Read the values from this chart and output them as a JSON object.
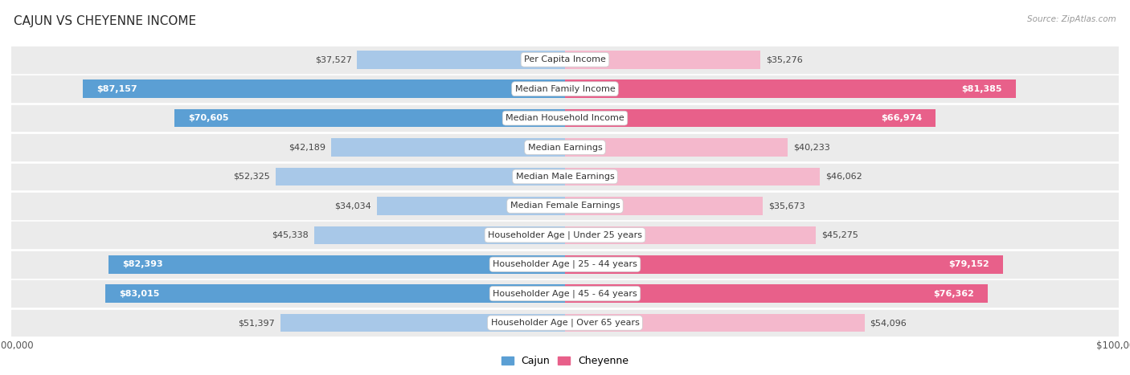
{
  "title": "CAJUN VS CHEYENNE INCOME",
  "source": "Source: ZipAtlas.com",
  "categories": [
    "Per Capita Income",
    "Median Family Income",
    "Median Household Income",
    "Median Earnings",
    "Median Male Earnings",
    "Median Female Earnings",
    "Householder Age | Under 25 years",
    "Householder Age | 25 - 44 years",
    "Householder Age | 45 - 64 years",
    "Householder Age | Over 65 years"
  ],
  "cajun_values": [
    37527,
    87157,
    70605,
    42189,
    52325,
    34034,
    45338,
    82393,
    83015,
    51397
  ],
  "cheyenne_values": [
    35276,
    81385,
    66974,
    40233,
    46062,
    35673,
    45275,
    79152,
    76362,
    54096
  ],
  "cajun_color_light": "#a8c8e8",
  "cajun_color_dark": "#5b9fd4",
  "cheyenne_color_light": "#f4b8cc",
  "cheyenne_color_dark": "#e8608a",
  "row_bg": "#ebebeb",
  "row_border": "#ffffff",
  "max_value": 100000,
  "bar_height": 0.62,
  "background_color": "#ffffff",
  "title_fontsize": 11,
  "label_fontsize": 8,
  "value_fontsize": 8,
  "legend_fontsize": 9,
  "inside_threshold": 60000,
  "inside_threshold_cheyenne": 55000
}
